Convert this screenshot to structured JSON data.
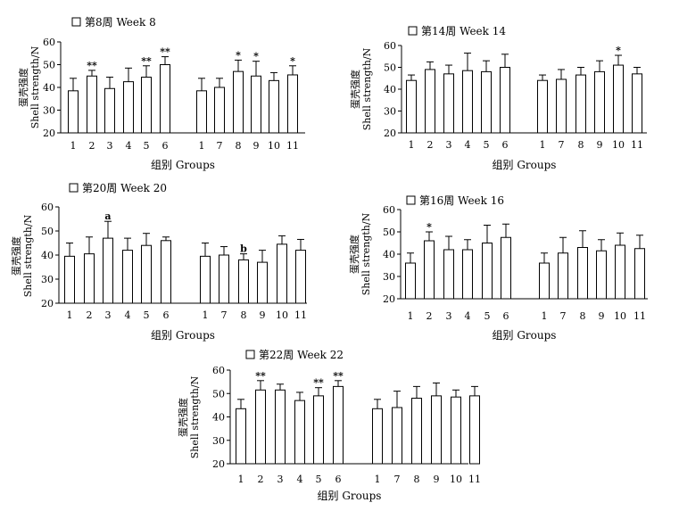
{
  "chart_data": [
    {
      "type": "bar",
      "title": "第8周 Week 8",
      "xlabel": "组别 Groups",
      "ylabel_cn": "蛋壳强度",
      "ylabel_en": "Shell strength/N",
      "ylim": [
        20,
        60
      ],
      "yticks": [
        20,
        30,
        40,
        50,
        60
      ],
      "groups": [
        {
          "categories": [
            "1",
            "2",
            "3",
            "4",
            "5",
            "6"
          ],
          "values": [
            38.5,
            45,
            39.5,
            42.5,
            44.5,
            50
          ],
          "errors": [
            5.5,
            2.5,
            5,
            6,
            5,
            3.5
          ],
          "labels": [
            "",
            "**",
            "",
            "",
            "**",
            "**"
          ]
        },
        {
          "categories": [
            "1",
            "7",
            "8",
            "9",
            "10",
            "11"
          ],
          "values": [
            38.5,
            40,
            47,
            45,
            43,
            45.5
          ],
          "errors": [
            5.5,
            4,
            5,
            6.5,
            3.5,
            4
          ],
          "labels": [
            "",
            "",
            "*",
            "*",
            "",
            "*"
          ]
        }
      ]
    },
    {
      "type": "bar",
      "title": "第14周 Week 14",
      "xlabel": "组别 Groups",
      "ylabel_cn": "蛋壳强度",
      "ylabel_en": "Shell strength/N",
      "ylim": [
        20,
        60
      ],
      "yticks": [
        20,
        30,
        40,
        50,
        60
      ],
      "groups": [
        {
          "categories": [
            "1",
            "2",
            "3",
            "4",
            "5",
            "6"
          ],
          "values": [
            44,
            49,
            47,
            48.5,
            48,
            50
          ],
          "errors": [
            2.5,
            3.5,
            4,
            8,
            5,
            6
          ],
          "labels": [
            "",
            "",
            "",
            "",
            "",
            ""
          ]
        },
        {
          "categories": [
            "1",
            "7",
            "8",
            "9",
            "10",
            "11"
          ],
          "values": [
            44,
            44.5,
            46.5,
            48,
            51,
            47
          ],
          "errors": [
            2.5,
            4.5,
            3.5,
            5,
            4.5,
            3
          ],
          "labels": [
            "",
            "",
            "",
            "",
            "*",
            ""
          ]
        }
      ]
    },
    {
      "type": "bar",
      "title": "第20周 Week 20",
      "xlabel": "组别 Groups",
      "ylabel_cn": "蛋壳强度",
      "ylabel_en": "Shell strength/N",
      "ylim": [
        20,
        60
      ],
      "yticks": [
        20,
        30,
        40,
        50,
        60
      ],
      "groups": [
        {
          "categories": [
            "1",
            "2",
            "3",
            "4",
            "5",
            "6"
          ],
          "values": [
            39.5,
            40.5,
            47,
            42,
            44,
            46
          ],
          "errors": [
            5.5,
            7,
            7,
            5,
            5,
            1.5
          ],
          "labels": [
            "",
            "",
            "a",
            "",
            "",
            ""
          ]
        },
        {
          "categories": [
            "1",
            "7",
            "8",
            "9",
            "10",
            "11"
          ],
          "values": [
            39.5,
            40,
            38,
            37,
            44.5,
            42
          ],
          "errors": [
            5.5,
            3.5,
            2.5,
            5,
            3.5,
            4.5
          ],
          "labels": [
            "",
            "",
            "b",
            "",
            "",
            ""
          ]
        }
      ]
    },
    {
      "type": "bar",
      "title": "第16周 Week 16",
      "xlabel": "组别 Groups",
      "ylabel_cn": "蛋壳强度",
      "ylabel_en": "Shell strength/N",
      "ylim": [
        20,
        60
      ],
      "yticks": [
        20,
        30,
        40,
        50,
        60
      ],
      "groups": [
        {
          "categories": [
            "1",
            "2",
            "3",
            "4",
            "5",
            "6"
          ],
          "values": [
            36,
            46,
            42,
            42,
            45,
            47.5
          ],
          "errors": [
            4.5,
            4,
            6,
            4.5,
            8,
            6
          ],
          "labels": [
            "",
            "*",
            "",
            "",
            "",
            ""
          ]
        },
        {
          "categories": [
            "1",
            "7",
            "8",
            "9",
            "10",
            "11"
          ],
          "values": [
            36,
            40.5,
            43,
            41.5,
            44,
            42.5
          ],
          "errors": [
            4.5,
            7,
            7.5,
            5,
            5.5,
            6
          ],
          "labels": [
            "",
            "",
            "",
            "",
            "",
            ""
          ]
        }
      ]
    },
    {
      "type": "bar",
      "title": "第22周 Week 22",
      "xlabel": "组别 Groups",
      "ylabel_cn": "蛋壳强度",
      "ylabel_en": "Shell strength/N",
      "ylim": [
        20,
        60
      ],
      "yticks": [
        20,
        30,
        40,
        50,
        60
      ],
      "groups": [
        {
          "categories": [
            "1",
            "2",
            "3",
            "4",
            "5",
            "6"
          ],
          "values": [
            43.5,
            51.5,
            51.5,
            47,
            49,
            53
          ],
          "errors": [
            4,
            4,
            2.5,
            3.5,
            3.5,
            2.5
          ],
          "labels": [
            "",
            "**",
            "",
            "",
            "**",
            "**"
          ]
        },
        {
          "categories": [
            "1",
            "7",
            "8",
            "9",
            "10",
            "11"
          ],
          "values": [
            43.5,
            44,
            48,
            49,
            48.5,
            49
          ],
          "errors": [
            4,
            7,
            5,
            5.5,
            3,
            4
          ],
          "labels": [
            "",
            "",
            "",
            "",
            "",
            ""
          ]
        }
      ]
    }
  ]
}
